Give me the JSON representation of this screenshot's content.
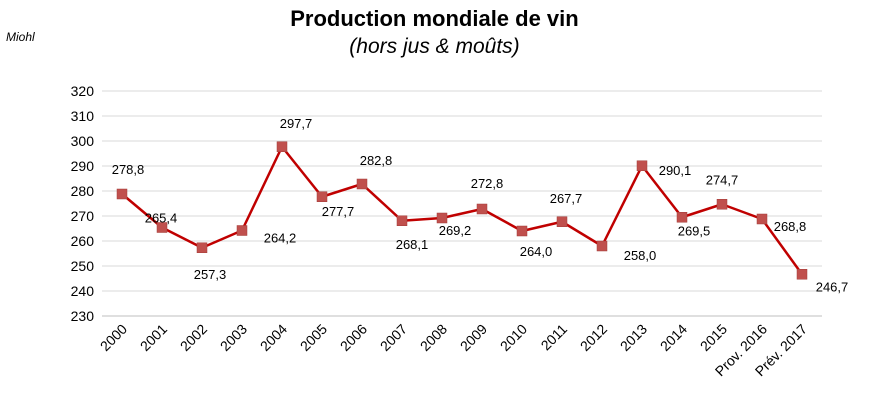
{
  "title": "Production mondiale de vin",
  "subtitle": "(hors jus & moûts)",
  "unit_label": "Miohl",
  "colors": {
    "line": "#c00000",
    "marker": "#c0504d",
    "grid": "#d9d9d9"
  },
  "chart_data": {
    "type": "line",
    "title": "Production mondiale de vin",
    "subtitle": "(hors jus & moûts)",
    "ylabel": "Miohl",
    "xlabel": "",
    "categories": [
      "2000",
      "2001",
      "2002",
      "2003",
      "2004",
      "2005",
      "2006",
      "2007",
      "2008",
      "2009",
      "2010",
      "2011",
      "2012",
      "2013",
      "2014",
      "2015",
      "Prov. 2016",
      "Prév. 2017"
    ],
    "series": [
      {
        "values": [
          278.8,
          265.4,
          257.3,
          264.2,
          297.7,
          277.7,
          282.8,
          268.1,
          269.2,
          272.8,
          264.0,
          267.7,
          258.0,
          290.1,
          269.5,
          274.7,
          268.8,
          246.7
        ],
        "labels": [
          "278,8",
          "265,4",
          "257,3",
          "264,2",
          "297,7",
          "277,7",
          "282,8",
          "268,1",
          "269,2",
          "272,8",
          "264,0",
          "267,7",
          "258,0",
          "290,1",
          "269,5",
          "274,7",
          "268,8",
          "246,7"
        ]
      }
    ],
    "ylim": [
      230,
      320
    ],
    "yticks": [
      230,
      240,
      250,
      260,
      270,
      280,
      290,
      300,
      310,
      320
    ],
    "grid": true,
    "legend": "none"
  }
}
